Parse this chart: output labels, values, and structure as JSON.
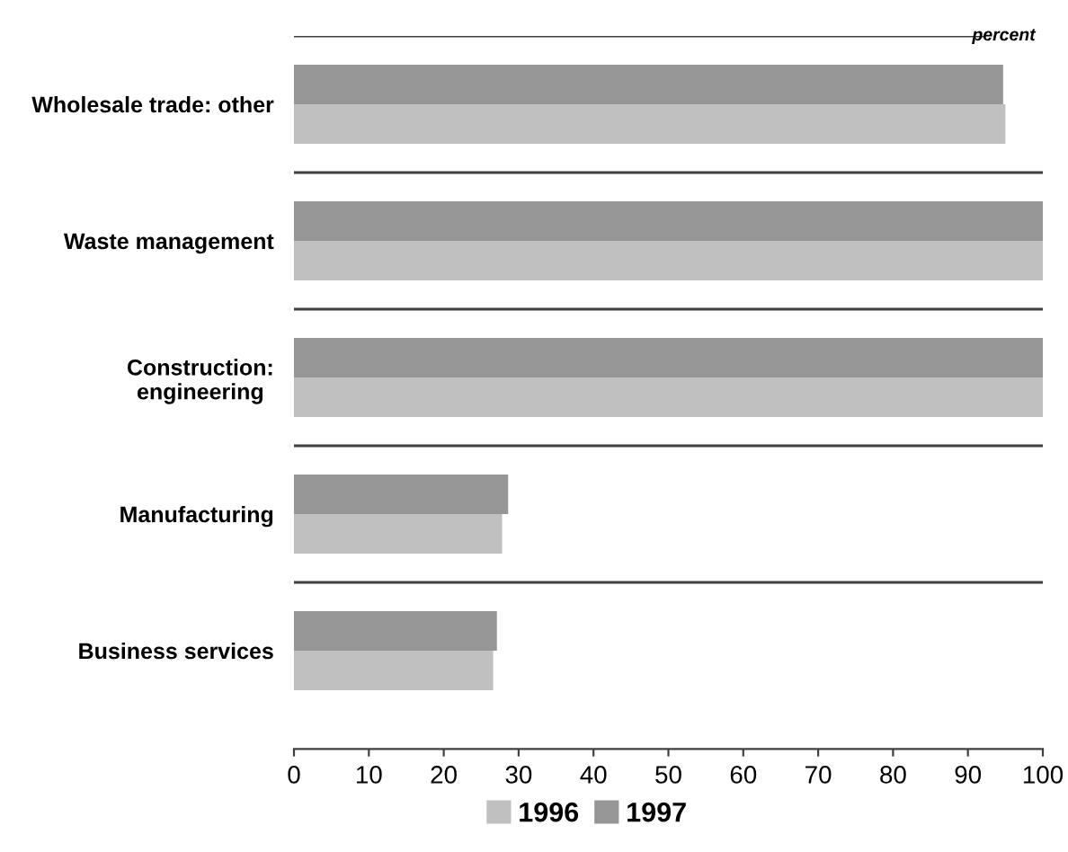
{
  "chart_data": {
    "type": "bar",
    "orientation": "horizontal",
    "xlabel": "percent",
    "categories": [
      "Wholesale trade: other",
      "Waste management",
      "Construction:\nengineering",
      "Manufacturing",
      "Business services"
    ],
    "series": [
      {
        "name": "1996",
        "color": "#c0c0c0",
        "values": [
          95.0,
          100,
          100,
          27.8,
          26.6
        ]
      },
      {
        "name": "1997",
        "color": "#969696",
        "values": [
          94.7,
          100,
          100,
          28.6,
          27.1
        ]
      }
    ],
    "xlim": [
      0,
      100
    ],
    "xticks": [
      0,
      10,
      20,
      30,
      40,
      50,
      60,
      70,
      80,
      90,
      100
    ],
    "grid": "y",
    "legend": "bottom"
  }
}
